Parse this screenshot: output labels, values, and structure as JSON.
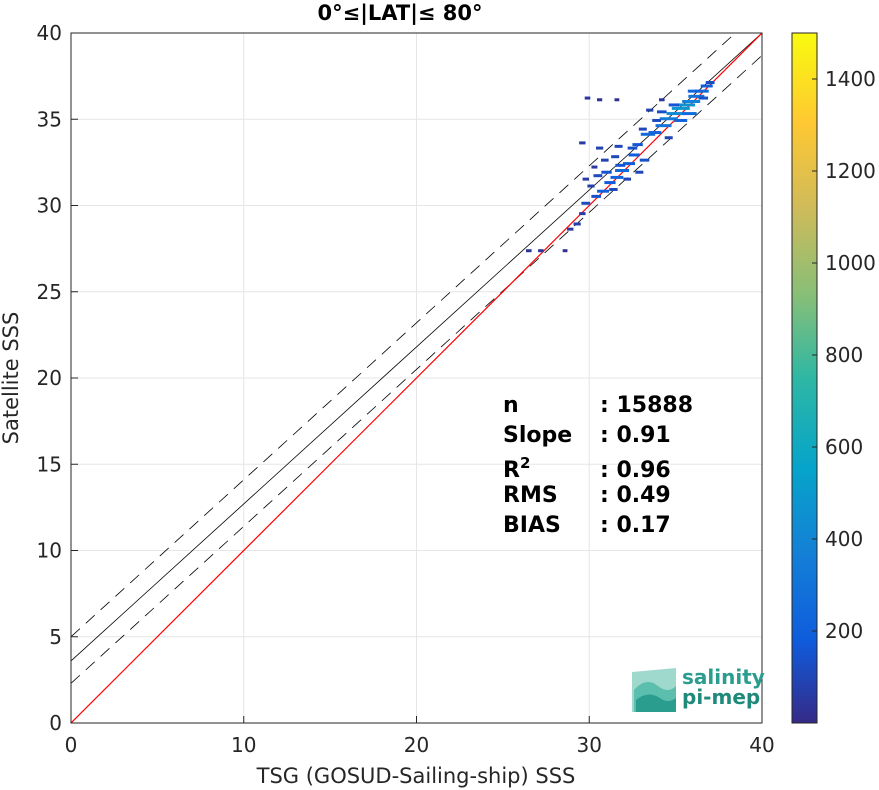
{
  "chart_data": {
    "type": "heatmap",
    "title": "0°≤|LAT|≤ 80°",
    "xlabel": "TSG (GOSUD-Sailing-ship) SSS",
    "ylabel": "Satellite SSS",
    "xlim": [
      0,
      40
    ],
    "ylim": [
      0,
      40
    ],
    "xticks": [
      0,
      10,
      20,
      30,
      40
    ],
    "yticks": [
      0,
      5,
      10,
      15,
      20,
      25,
      30,
      35,
      40
    ],
    "grid": true,
    "colorbar": {
      "range": [
        0,
        1500
      ],
      "ticks": [
        200,
        400,
        600,
        800,
        1000,
        1200,
        1400
      ],
      "colormap": "parula"
    },
    "stats": [
      {
        "key": "n",
        "value": ": 15888"
      },
      {
        "key": "Slope",
        "value": ": 0.91"
      },
      {
        "key": "R",
        "sup": "2",
        "value": ": 0.96"
      },
      {
        "key": "RMS",
        "value": ": 0.49"
      },
      {
        "key": "BIAS",
        "value": ": 0.17"
      }
    ],
    "lines": {
      "identity": {
        "slope": 1,
        "intercept": 0,
        "color": "#ff0000"
      },
      "fit": {
        "slope": 0.91,
        "intercept": 3.6,
        "color": "#000000"
      },
      "fit_upper": {
        "slope": 0.91,
        "intercept": 5.0,
        "style": "dashed"
      },
      "fit_lower": {
        "slope": 0.91,
        "intercept": 2.3,
        "style": "dashed"
      }
    },
    "density_points": [
      [
        26.5,
        27.35,
        40
      ],
      [
        27.2,
        27.35,
        40
      ],
      [
        28.6,
        27.35,
        20
      ],
      [
        28.9,
        28.6,
        60
      ],
      [
        29.3,
        28.9,
        80
      ],
      [
        29.8,
        30.1,
        120
      ],
      [
        29.6,
        29.5,
        60
      ],
      [
        30.4,
        30.5,
        140
      ],
      [
        30.8,
        30.8,
        200
      ],
      [
        31.2,
        31.3,
        180
      ],
      [
        31.6,
        31.6,
        220
      ],
      [
        31.9,
        32.0,
        250
      ],
      [
        32.3,
        32.4,
        200
      ],
      [
        30.5,
        31.7,
        120
      ],
      [
        31.0,
        31.9,
        160
      ],
      [
        31.8,
        32.3,
        150
      ],
      [
        32.6,
        32.9,
        180
      ],
      [
        32.5,
        33.3,
        140
      ],
      [
        31.5,
        32.8,
        100
      ],
      [
        30.9,
        32.6,
        90
      ],
      [
        29.6,
        33.6,
        60
      ],
      [
        30.6,
        33.3,
        80
      ],
      [
        31.7,
        33.4,
        100
      ],
      [
        32.8,
        33.5,
        160
      ],
      [
        33.4,
        34.1,
        260
      ],
      [
        33.8,
        34.2,
        220
      ],
      [
        34.3,
        34.6,
        300
      ],
      [
        34.6,
        35.0,
        350
      ],
      [
        35.0,
        35.3,
        420
      ],
      [
        35.3,
        35.6,
        500
      ],
      [
        35.6,
        35.8,
        450
      ],
      [
        35.9,
        36.0,
        380
      ],
      [
        36.2,
        36.3,
        300
      ],
      [
        36.5,
        36.6,
        260
      ],
      [
        36.8,
        36.9,
        200
      ],
      [
        37.0,
        37.1,
        120
      ],
      [
        34.2,
        35.4,
        140
      ],
      [
        34.9,
        35.8,
        160
      ],
      [
        33.9,
        34.9,
        120
      ],
      [
        33.5,
        35.5,
        80
      ],
      [
        35.3,
        34.9,
        220
      ],
      [
        35.8,
        35.3,
        260
      ],
      [
        34.6,
        33.9,
        100
      ],
      [
        32.9,
        31.9,
        100
      ],
      [
        33.2,
        32.6,
        140
      ],
      [
        33.1,
        34.4,
        100
      ],
      [
        36.1,
        36.6,
        240
      ],
      [
        36.6,
        36.2,
        140
      ],
      [
        30.1,
        31.1,
        80
      ],
      [
        29.8,
        31.5,
        60
      ],
      [
        30.3,
        32.2,
        50
      ],
      [
        32.2,
        31.5,
        90
      ],
      [
        31.4,
        30.9,
        110
      ],
      [
        29.9,
        36.2,
        40
      ],
      [
        30.6,
        36.1,
        30
      ],
      [
        31.6,
        36.1,
        20
      ],
      [
        34.2,
        36.1,
        40
      ]
    ]
  },
  "logo": {
    "line1": "salinity",
    "line2": "pi-mep"
  }
}
